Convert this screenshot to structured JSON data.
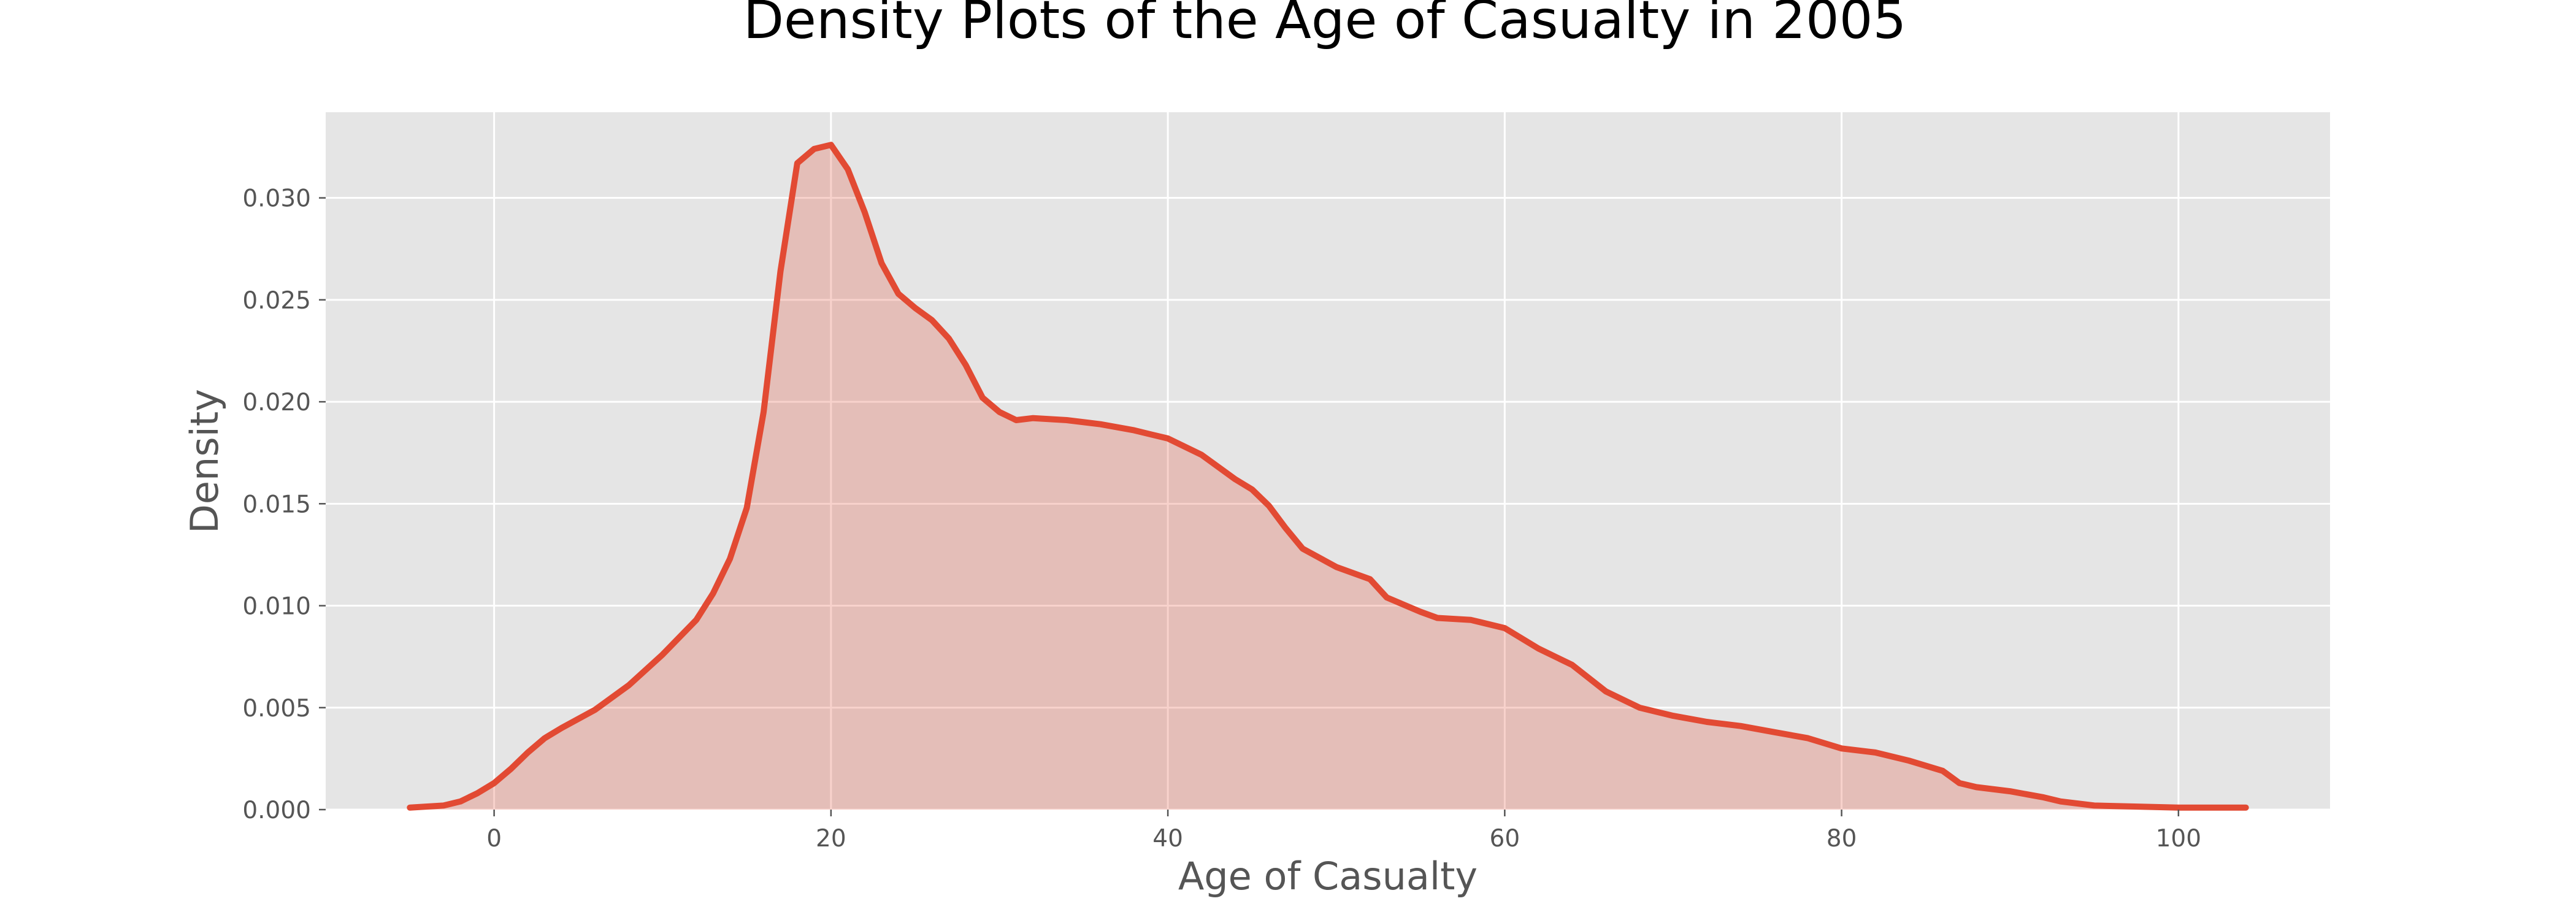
{
  "chart_data": {
    "type": "area",
    "title": "Density Plots of the Age of Casualty in 2005",
    "xlabel": "Age of Casualty",
    "ylabel": "Density",
    "xlim": [
      -10,
      109
    ],
    "ylim": [
      0,
      0.0342
    ],
    "x_ticks": [
      0,
      20,
      40,
      60,
      80,
      100
    ],
    "x_tick_labels": [
      "0",
      "20",
      "40",
      "60",
      "80",
      "100"
    ],
    "y_ticks": [
      0,
      0.005,
      0.01,
      0.015,
      0.02,
      0.025,
      0.03
    ],
    "y_tick_labels": [
      "0.000",
      "0.005",
      "0.010",
      "0.015",
      "0.020",
      "0.025",
      "0.030"
    ],
    "grid": true,
    "colors": {
      "line": "#E24A33",
      "fill": "#E24A33",
      "plot_background": "#E5E5E5",
      "grid": "#FFFFFF"
    },
    "series": [
      {
        "x": [
          -5,
          -3,
          -2,
          -1,
          0,
          1,
          2,
          3,
          4,
          6,
          8,
          10,
          12,
          13,
          14,
          15,
          16,
          17,
          18,
          19,
          20,
          21,
          22,
          23,
          24,
          25,
          26,
          27,
          28,
          29,
          30,
          31,
          32,
          34,
          36,
          38,
          39,
          40,
          42,
          44,
          45,
          46,
          47,
          48,
          50,
          52,
          53,
          55,
          56,
          58,
          60,
          62,
          64,
          66,
          68,
          70,
          72,
          74,
          76,
          78,
          80,
          82,
          84,
          86,
          87,
          88,
          90,
          92,
          93,
          95,
          100,
          104
        ],
        "y": [
          0.0001,
          0.0002,
          0.0004,
          0.0008,
          0.0013,
          0.002,
          0.0028,
          0.0035,
          0.004,
          0.0049,
          0.0061,
          0.0076,
          0.0093,
          0.0106,
          0.0123,
          0.0148,
          0.0195,
          0.0264,
          0.0317,
          0.0324,
          0.0326,
          0.0314,
          0.0293,
          0.0268,
          0.0253,
          0.0246,
          0.024,
          0.0231,
          0.0218,
          0.0202,
          0.0195,
          0.0191,
          0.0192,
          0.0191,
          0.0189,
          0.0186,
          0.0184,
          0.0182,
          0.0174,
          0.0162,
          0.0157,
          0.0149,
          0.0138,
          0.0128,
          0.0119,
          0.0113,
          0.0104,
          0.0097,
          0.0094,
          0.0093,
          0.0089,
          0.0079,
          0.0071,
          0.0058,
          0.005,
          0.0046,
          0.0043,
          0.0041,
          0.0038,
          0.0035,
          0.003,
          0.0028,
          0.0024,
          0.0019,
          0.0013,
          0.0011,
          0.0009,
          0.0006,
          0.0004,
          0.0002,
          0.0001,
          0.0001
        ]
      }
    ]
  }
}
